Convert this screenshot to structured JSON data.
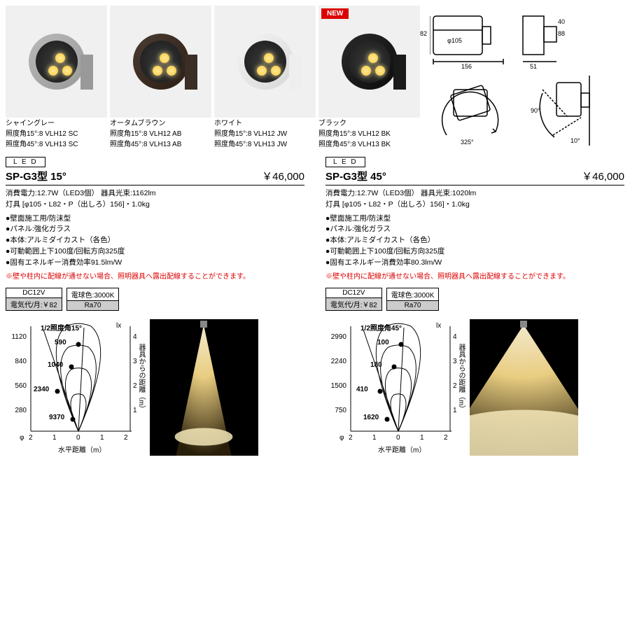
{
  "variants": [
    {
      "name": "シャイングレー",
      "line15": "照度角15°:8 VLH12 SC",
      "line45": "照度角45°:8 VLH13 SC",
      "color": "#b8b8b8",
      "bracket": "#999",
      "new": false
    },
    {
      "name": "オータムブラウン",
      "line15": "照度角15°:8 VLH12 AB",
      "line45": "照度角45°:8 VLH13 AB",
      "color": "#4a3c32",
      "bracket": "#3a2e26",
      "new": false
    },
    {
      "name": "ホワイト",
      "line15": "照度角15°:8 VLH12 JW",
      "line45": "照度角45°:8 VLH13 JW",
      "color": "#f5f5f5",
      "bracket": "#eee",
      "new": false
    },
    {
      "name": "ブラック",
      "line15": "照度角15°:8 VLH12 BK",
      "line45": "照度角45°:8 VLH13 BK",
      "color": "#2a2a2a",
      "bracket": "#1a1a1a",
      "new": true
    }
  ],
  "new_label": "NEW",
  "dims": {
    "d82": "82",
    "d88": "88",
    "d40": "40",
    "d105": "φ105",
    "d156": "156",
    "d51": "51",
    "d325": "325°",
    "d90": "90°",
    "d10": "10°"
  },
  "specs": [
    {
      "led": "L E D",
      "model": "SP-G3型 15°",
      "price": "￥46,000",
      "power": "消費電力:12.7W（LED3個） 器具光束:1162lm",
      "body": "灯具 [φ105・L82・P（出しろ）156]・1.0kg",
      "bullets": [
        "壁面施工用/防沫型",
        "パネル:強化ガラス",
        "本体:アルミダイカスト（各色）",
        "可動範囲上下100度/回転方向325度",
        "固有エネルギー消費効率91.5lm/W"
      ],
      "warning": "※壁や柱内に配線が通せない場合、照明器具へ露出配線することができます。",
      "box1h": "DC12V",
      "box1b": "電気代/月:￥82",
      "box2h": "電球色:3000K",
      "box2b": "Ra70"
    },
    {
      "led": "L E D",
      "model": "SP-G3型 45°",
      "price": "￥46,000",
      "power": "消費電力:12.7W（LED3個） 器具光束:1020lm",
      "body": "灯具 [φ105・L82・P（出しろ）156]・1.0kg",
      "bullets": [
        "壁面施工用/防沫型",
        "パネル:強化ガラス",
        "本体:アルミダイカスト（各色）",
        "可動範囲上下100度/回転方向325度",
        "固有エネルギー消費効率80.3lm/W"
      ],
      "warning": "※壁や柱内に配線が通せない場合、照明器具へ露出配線することができます。",
      "box1h": "DC12V",
      "box1b": "電気代/月:￥82",
      "box2h": "電球色:3000K",
      "box2b": "Ra70"
    }
  ],
  "charts": [
    {
      "title": "1/2照度角15°",
      "lx_lbl": "lx",
      "dist_lbl": "器具からの距離（m）",
      "xaxis": "水平距離（m）",
      "phi": "φ",
      "yticks": [
        "1120",
        "840",
        "560",
        "280"
      ],
      "ytick_pos": [
        20,
        55,
        90,
        125
      ],
      "xticks": [
        "2",
        "1",
        "0",
        "1",
        "2"
      ],
      "xtick_pos": [
        36,
        70,
        104,
        138,
        172
      ],
      "right_ticks": [
        "4",
        "3",
        "2",
        "1"
      ],
      "right_pos": [
        20,
        55,
        90,
        125
      ],
      "values": [
        "590",
        "1040",
        "2340",
        "9370"
      ],
      "value_pos": [
        [
          88,
          28
        ],
        [
          78,
          60
        ],
        [
          58,
          95
        ],
        [
          80,
          135
        ]
      ],
      "beam_spread": 18
    },
    {
      "title": "1/2照度角45°",
      "lx_lbl": "lx",
      "dist_lbl": "器具からの距離（m）",
      "xaxis": "水平距離（m）",
      "phi": "φ",
      "yticks": [
        "2990",
        "2240",
        "1500",
        "750"
      ],
      "ytick_pos": [
        20,
        55,
        90,
        125
      ],
      "xticks": [
        "2",
        "1",
        "0",
        "1",
        "2"
      ],
      "xtick_pos": [
        36,
        70,
        104,
        138,
        172
      ],
      "right_ticks": [
        "4",
        "3",
        "2",
        "1"
      ],
      "right_pos": [
        20,
        55,
        90,
        125
      ],
      "values": [
        "100",
        "180",
        "410",
        "1620"
      ],
      "value_pos": [
        [
          92,
          28
        ],
        [
          82,
          60
        ],
        [
          62,
          95
        ],
        [
          72,
          135
        ]
      ],
      "beam_spread": 55
    }
  ]
}
